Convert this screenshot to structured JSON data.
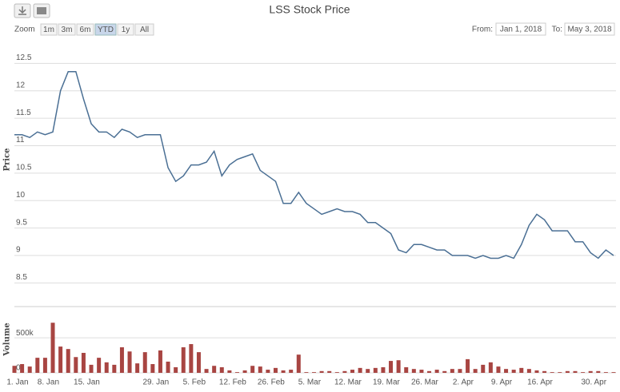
{
  "chart_data": {
    "type": "line",
    "title": "LSS Stock Price",
    "zoom": {
      "label": "Zoom",
      "buttons": [
        "1m",
        "3m",
        "6m",
        "YTD",
        "1y",
        "All"
      ],
      "selected": 3
    },
    "range": {
      "from_label": "From:",
      "from": "Jan 1, 2018",
      "to_label": "To:",
      "to": "May 3, 2018"
    },
    "ylabel": "Price",
    "y2label": "Volume",
    "categories": [
      "1. Jan",
      null,
      null,
      null,
      "8. Jan",
      null,
      null,
      null,
      null,
      "15. Jan",
      null,
      null,
      null,
      null,
      null,
      null,
      null,
      null,
      "29. Jan",
      null,
      null,
      null,
      null,
      "5. Feb",
      null,
      null,
      null,
      null,
      "12. Feb",
      null,
      null,
      null,
      null,
      "26. Feb",
      null,
      null,
      null,
      null,
      "5. Mar",
      null,
      null,
      null,
      null,
      "12. Mar",
      null,
      null,
      null,
      null,
      "19. Mar",
      null,
      null,
      null,
      null,
      "26. Mar",
      null,
      null,
      null,
      null,
      "2. Apr",
      null,
      null,
      null,
      null,
      "9. Apr",
      null,
      null,
      null,
      null,
      "16. Apr",
      null,
      null,
      null,
      null,
      null,
      null,
      "30. Apr",
      null,
      null,
      null
    ],
    "series": [
      {
        "color": "#4a6f94",
        "values": [
          11.2,
          11.2,
          11.15,
          11.25,
          11.2,
          11.25,
          12.0,
          12.35,
          12.35,
          11.85,
          11.4,
          11.25,
          11.25,
          11.15,
          11.3,
          11.25,
          11.15,
          11.2,
          11.2,
          11.2,
          10.6,
          10.35,
          10.45,
          10.65,
          10.65,
          10.7,
          10.9,
          10.45,
          10.65,
          10.75,
          10.8,
          10.85,
          10.55,
          10.45,
          10.35,
          9.95,
          9.95,
          10.15,
          9.95,
          9.85,
          9.75,
          9.8,
          9.85,
          9.8,
          9.8,
          9.75,
          9.6,
          9.6,
          9.5,
          9.4,
          9.1,
          9.05,
          9.2,
          9.2,
          9.15,
          9.1,
          9.1,
          9.0,
          9.0,
          9.0,
          8.95,
          9.0,
          8.95,
          8.95,
          9.0,
          8.95,
          9.2,
          9.55,
          9.75,
          9.65,
          9.45,
          9.45,
          9.45,
          9.25,
          9.25,
          9.05,
          8.95,
          9.1,
          9.0
        ]
      },
      {
        "type": "bar",
        "axis": "y2",
        "color": "#a84542",
        "values": [
          100000,
          125000,
          90000,
          215000,
          215000,
          715000,
          375000,
          340000,
          225000,
          285000,
          115000,
          215000,
          150000,
          115000,
          365000,
          305000,
          135000,
          295000,
          125000,
          320000,
          160000,
          80000,
          365000,
          410000,
          295000,
          55000,
          100000,
          80000,
          35000,
          10000,
          35000,
          100000,
          90000,
          45000,
          70000,
          35000,
          45000,
          260000,
          10000,
          10000,
          25000,
          25000,
          10000,
          25000,
          45000,
          70000,
          55000,
          70000,
          80000,
          170000,
          180000,
          80000,
          55000,
          45000,
          25000,
          45000,
          25000,
          55000,
          55000,
          195000,
          55000,
          115000,
          150000,
          90000,
          55000,
          45000,
          70000,
          55000,
          35000,
          25000,
          10000,
          10000,
          25000,
          25000,
          10000,
          25000,
          25000,
          10000,
          10000
        ]
      }
    ],
    "ylim": [
      8.2,
      13
    ],
    "yticks": [
      8.5,
      9,
      9.5,
      10,
      10.5,
      11,
      11.5,
      12,
      12.5
    ],
    "y2lim": [
      0,
      900000
    ],
    "y2ticks": [
      0,
      {
        "value": 500000,
        "label": "500k"
      }
    ],
    "grid": true
  }
}
